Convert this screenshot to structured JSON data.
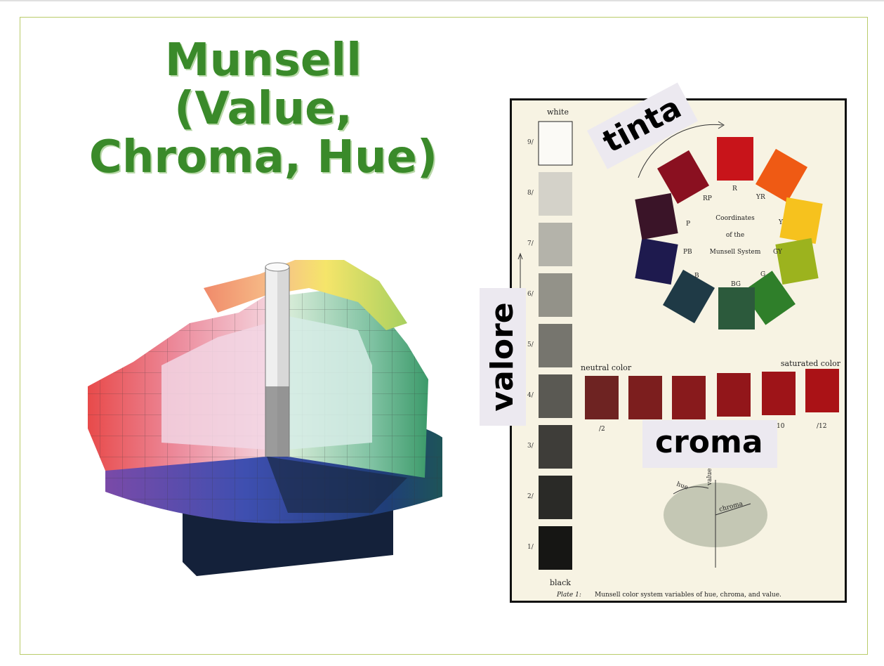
{
  "title": {
    "line1": "Munsell",
    "line2": "(Value,",
    "line3": "Chroma, Hue)"
  },
  "labels": {
    "hue": "tinta",
    "value": "valore",
    "chroma": "croma"
  },
  "plate": {
    "value_scale": {
      "top": "white",
      "bottom": "black",
      "ticks": [
        "9/",
        "8/",
        "7/",
        "6/",
        "5/",
        "4/",
        "3/",
        "2/",
        "1/"
      ]
    },
    "hue_wheel": {
      "center_lines": [
        "Coordinates",
        "of the",
        "Munsell System"
      ],
      "hues": [
        "R",
        "YR",
        "Y",
        "GY",
        "G",
        "BG",
        "B",
        "PB",
        "P",
        "RP"
      ]
    },
    "chroma_row": {
      "left": "neutral color",
      "right": "saturated color",
      "ticks": [
        "/2",
        "/10",
        "/12"
      ]
    },
    "axes": {
      "hue": "hue",
      "value": "value",
      "chroma": "chroma"
    },
    "caption_label": "Plate 1:",
    "caption": "Munsell color system variables of hue, chroma, and value."
  },
  "colors": {
    "title": "#3a8a2a",
    "border": "#b9cc6a"
  }
}
